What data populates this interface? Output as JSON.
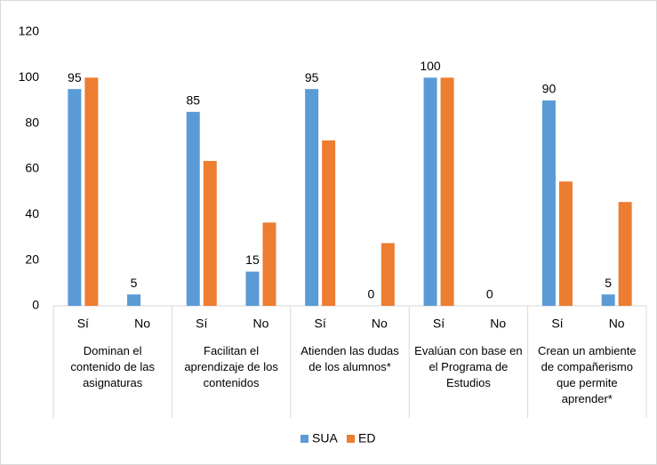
{
  "chart_data": {
    "type": "bar",
    "categories": [
      "Sí",
      "No",
      "Sí",
      "No",
      "Sí",
      "No",
      "Sí",
      "No",
      "Sí",
      "No"
    ],
    "groups": [
      "Dominan el contenido de las asignaturas",
      "Facilitan el aprendizaje de los contenidos",
      "Atienden las dudas de los alumnos*",
      "Evalúan con base en el Programa de Estudios",
      "Crean un ambiente de compañerismo que permite aprender*"
    ],
    "series": [
      {
        "name": "SUA",
        "color": "#5b9bd5",
        "show_labels": true,
        "values": [
          95,
          5,
          85,
          15,
          95,
          0,
          100,
          0,
          90,
          5
        ]
      },
      {
        "name": "ED",
        "color": "#ed7d31",
        "show_labels": false,
        "values": [
          100,
          0,
          63.5,
          36.5,
          72.5,
          27.5,
          100,
          0,
          54.5,
          45.5
        ]
      }
    ],
    "ylim": [
      0,
      120
    ],
    "yticks": [
      0,
      20,
      40,
      60,
      80,
      100,
      120
    ],
    "grid": false,
    "legend": "bottom"
  }
}
